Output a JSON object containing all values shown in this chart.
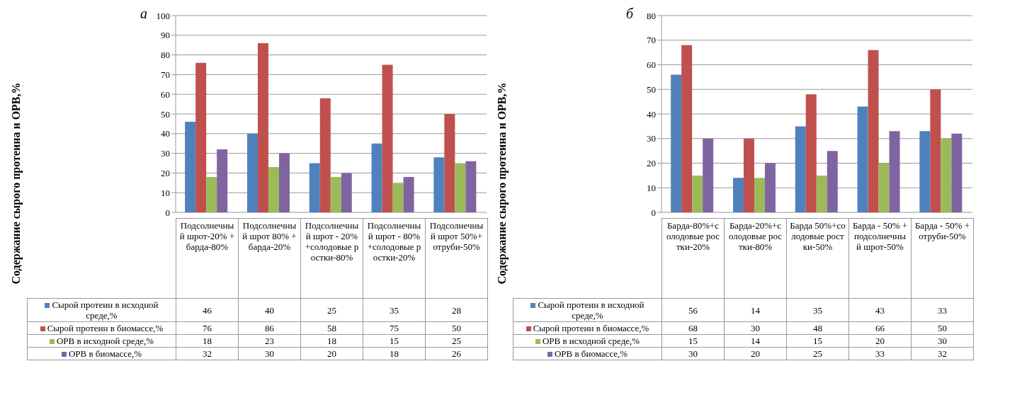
{
  "chart_data": [
    {
      "type": "bar",
      "title": "а",
      "ylabel": "Содержание сырого протеина и ОРВ,%",
      "categories": [
        "Подсолнечный шрот-20% +барда-80%",
        "Подсолнечный шрот 80% +барда-20%",
        "Подсолнечный шрот - 20%+солодовые ростки-80%",
        "Подсолнечный шрот - 80%+солодовые ростки-20%",
        "Подсолнечный шрот 50%+отруби-50%"
      ],
      "series": [
        {
          "name": "Сырой протеин в исходной среде,%",
          "color": "#4f81bd",
          "values": [
            46,
            40,
            25,
            35,
            28
          ]
        },
        {
          "name": "Сырой протеин в биомассе,%",
          "color": "#c0504d",
          "values": [
            76,
            86,
            58,
            75,
            50
          ]
        },
        {
          "name": "ОРВ в исходной среде,%",
          "color": "#9bbb59",
          "values": [
            18,
            23,
            18,
            15,
            25
          ]
        },
        {
          "name": "ОРВ в биомассе,%",
          "color": "#8064a2",
          "values": [
            32,
            30,
            20,
            18,
            26
          ]
        }
      ],
      "ylim": [
        0,
        100
      ],
      "yticks": [
        0,
        10,
        20,
        30,
        40,
        50,
        60,
        70,
        80,
        90,
        100
      ],
      "grid": "y",
      "legend": "bottom",
      "data_labels": true
    },
    {
      "type": "bar",
      "title": "б",
      "ylabel": "Содержание сырого протеина и ОРВ,%",
      "categories": [
        "Барда-80%+солодовые ростки-20%",
        "Барда-20%+солодовые ростки-80%",
        "Барда 50%+солодовые ростки-50%",
        "Барда - 50% +подсолнечный шрот-50%",
        "Барда - 50% +отруби-50%"
      ],
      "series": [
        {
          "name": "Сырой протеин в исходной среде,%",
          "color": "#4f81bd",
          "values": [
            56,
            14,
            35,
            43,
            33
          ]
        },
        {
          "name": "Сырой протеин в биомассе,%",
          "color": "#c0504d",
          "values": [
            68,
            30,
            48,
            66,
            50
          ]
        },
        {
          "name": "ОРВ в исходной среде,%",
          "color": "#9bbb59",
          "values": [
            15,
            14,
            15,
            20,
            30
          ]
        },
        {
          "name": "ОРВ в биомассе,%",
          "color": "#8064a2",
          "values": [
            30,
            20,
            25,
            33,
            32
          ]
        }
      ],
      "ylim": [
        0,
        80
      ],
      "yticks": [
        0,
        10,
        20,
        30,
        40,
        50,
        60,
        70,
        80
      ],
      "grid": "y",
      "legend": "bottom",
      "data_labels": true
    }
  ]
}
